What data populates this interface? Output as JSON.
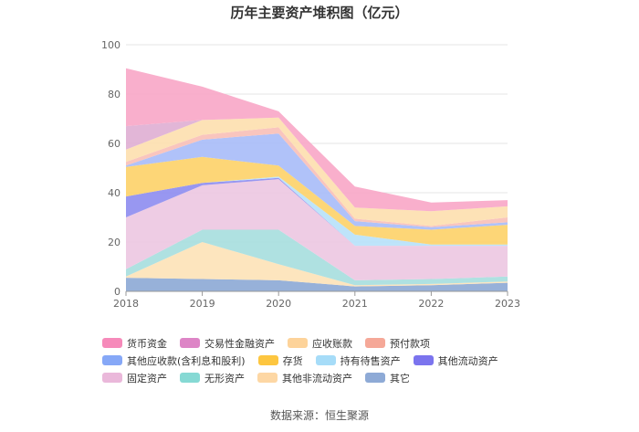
{
  "chart_data": {
    "type": "area",
    "stacked": true,
    "title": "历年主要资产堆积图（亿元）",
    "xlabel": "",
    "ylabel": "",
    "x": [
      "2018",
      "2019",
      "2020",
      "2021",
      "2022",
      "2023"
    ],
    "ylim": [
      0,
      100
    ],
    "yticks": [
      0,
      20,
      40,
      60,
      80,
      100
    ],
    "grid": true,
    "legend_position": "bottom",
    "series": [
      {
        "name": "其它",
        "color": "#8eaad6",
        "values": [
          5.5,
          5.0,
          4.5,
          2.0,
          2.5,
          3.5
        ]
      },
      {
        "name": "其他非流动资产",
        "color": "#fde3b8",
        "values": [
          0.5,
          15.0,
          6.5,
          0.5,
          0.5,
          0.5
        ]
      },
      {
        "name": "无形资产",
        "color": "#a8dede",
        "values": [
          3.0,
          5.0,
          14.0,
          2.0,
          2.0,
          2.0
        ]
      },
      {
        "name": "固定资产",
        "color": "#edc8e2",
        "values": [
          21.0,
          18.0,
          20.5,
          14.0,
          13.5,
          12.5
        ]
      },
      {
        "name": "其他流动资产",
        "color": "#8f8ef0",
        "values": [
          8.5,
          1.0,
          0.5,
          0.0,
          0.0,
          0.0
        ]
      },
      {
        "name": "持有待售资产",
        "color": "#b9e2fa",
        "values": [
          0.0,
          0.0,
          0.5,
          4.5,
          0.5,
          0.5
        ]
      },
      {
        "name": "存货",
        "color": "#fdd36b",
        "values": [
          12.0,
          10.5,
          4.5,
          3.5,
          6.0,
          8.0
        ]
      },
      {
        "name": "其他应收款(含利息和股利)",
        "color": "#a9bdf9",
        "values": [
          0.5,
          7.0,
          13.0,
          2.0,
          1.0,
          1.0
        ]
      },
      {
        "name": "预付款项",
        "color": "#f9c0b8",
        "values": [
          1.5,
          2.0,
          2.5,
          1.0,
          0.5,
          2.0
        ]
      },
      {
        "name": "应收账款",
        "color": "#fde0b0",
        "values": [
          5.0,
          6.0,
          4.0,
          4.5,
          6.0,
          4.5
        ]
      },
      {
        "name": "交易性金融资产",
        "color": "#e0b0d4",
        "values": [
          9.5,
          0.0,
          0.0,
          0.0,
          0.0,
          0.0
        ]
      },
      {
        "name": "货币资金",
        "color": "#f9a8c8",
        "values": [
          23.5,
          13.5,
          2.5,
          8.5,
          3.5,
          2.5
        ]
      }
    ]
  },
  "legend": [
    {
      "label": "货币资金",
      "color": "#f68aba"
    },
    {
      "label": "交易性金融资产",
      "color": "#dd85c6"
    },
    {
      "label": "应收账款",
      "color": "#fdd39a"
    },
    {
      "label": "预付款项",
      "color": "#f5a898"
    },
    {
      "label": "其他应收款(含利息和股利)",
      "color": "#86a8f7"
    },
    {
      "label": "存货",
      "color": "#fdc640"
    },
    {
      "label": "持有待售资产",
      "color": "#a6dcf8"
    },
    {
      "label": "其他流动资产",
      "color": "#7b74ee"
    },
    {
      "label": "固定资产",
      "color": "#eab8da"
    },
    {
      "label": "无形资产",
      "color": "#86d9d4"
    },
    {
      "label": "其他非流动资产",
      "color": "#fdd7a4"
    },
    {
      "label": "其它",
      "color": "#8eaad6"
    }
  ],
  "source": "数据来源：恒生聚源"
}
